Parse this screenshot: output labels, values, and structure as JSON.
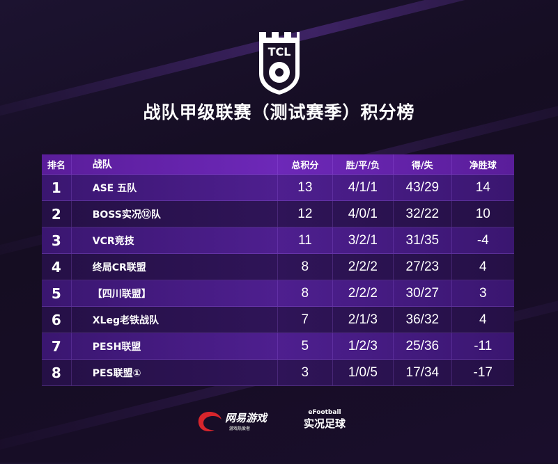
{
  "logo": {
    "text": "TCL"
  },
  "title": "战队甲级联赛（测试赛季）积分榜",
  "headers": [
    "排名",
    "战队",
    "总积分",
    "胜/平/负",
    "得/失",
    "净胜球"
  ],
  "rows": [
    {
      "rank": "1",
      "team": "ASE 五队",
      "pts": "13",
      "wdl": "4/1/1",
      "gfga": "43/29",
      "gd": "14"
    },
    {
      "rank": "2",
      "team": "BOSS实况⑫队",
      "pts": "12",
      "wdl": "4/0/1",
      "gfga": "32/22",
      "gd": "10"
    },
    {
      "rank": "3",
      "team": "VCR竞技",
      "pts": "11",
      "wdl": "3/2/1",
      "gfga": "31/35",
      "gd": "-4"
    },
    {
      "rank": "4",
      "team": "终局CR联盟",
      "pts": "8",
      "wdl": "2/2/2",
      "gfga": "27/23",
      "gd": "4"
    },
    {
      "rank": "5",
      "team": "【四川联盟】",
      "pts": "8",
      "wdl": "2/2/2",
      "gfga": "30/27",
      "gd": "3"
    },
    {
      "rank": "6",
      "team": "XLeg老铁战队",
      "pts": "7",
      "wdl": "2/1/3",
      "gfga": "36/32",
      "gd": "4"
    },
    {
      "rank": "7",
      "team": "PESH联盟",
      "pts": "5",
      "wdl": "1/2/3",
      "gfga": "25/36",
      "gd": "-11"
    },
    {
      "rank": "8",
      "team": "PES联盟①",
      "pts": "3",
      "wdl": "1/0/5",
      "gfga": "17/34",
      "gd": "-17"
    }
  ],
  "footer": {
    "netease": "网易游戏",
    "netease_sub": "游戏热爱者",
    "efootball": "eFootball",
    "efootball_cn": "实况足球"
  },
  "colors": {
    "accent": "#6d28b8",
    "netease_red": "#d8252c"
  }
}
